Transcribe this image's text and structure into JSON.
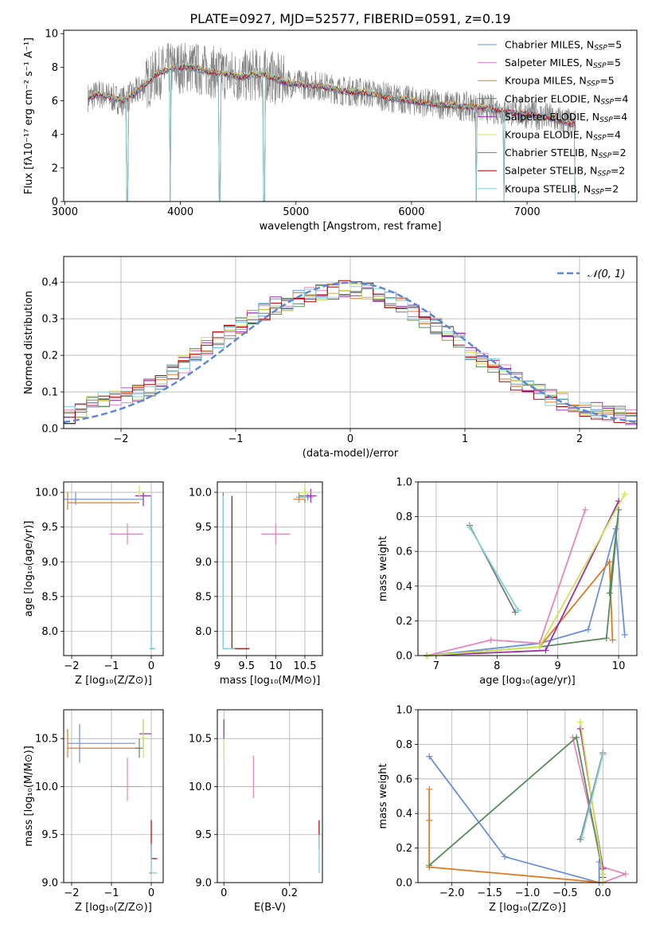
{
  "figure_title": "PLATE=0927, MJD=52577, FIBERID=0591, z=0.19",
  "series_colors": [
    "#6a8fd8",
    "#e786b9",
    "#e07b22",
    "#5a8a5e",
    "#9b2fae",
    "#cde554",
    "#7a7a7a",
    "#b00000",
    "#7fd3dc"
  ],
  "chart_data": [
    {
      "id": "spectrum",
      "type": "line",
      "title": "PLATE=0927, MJD=52577, FIBERID=0591, z=0.19",
      "xlabel": "wavelength [Angstrom, rest frame]",
      "ylabel": "Flux [fλ10⁻¹⁷ erg cm⁻² s⁻¹ A⁻¹]",
      "xlim": [
        2990,
        7950
      ],
      "ylim": [
        0,
        10.2
      ],
      "xticks": [
        3000,
        4000,
        5000,
        6000,
        7000
      ],
      "yticks": [
        0,
        2,
        4,
        6,
        8,
        10
      ],
      "grid": false,
      "legend_position": "upper-right",
      "legend": [
        {
          "label": "Chabrier MILES, N",
          "sub": "SSP",
          "tail": "=5"
        },
        {
          "label": "Salpeter MILES, N",
          "sub": "SSP",
          "tail": "=5"
        },
        {
          "label": "Kroupa MILES, N",
          "sub": "SSP",
          "tail": "=5"
        },
        {
          "label": "Chabrier ELODIE, N",
          "sub": "SSP",
          "tail": "=4"
        },
        {
          "label": "Salpeter ELODIE, N",
          "sub": "SSP",
          "tail": "=4"
        },
        {
          "label": "Kroupa ELODIE, N",
          "sub": "SSP",
          "tail": "=4"
        },
        {
          "label": "Chabrier STELIB, N",
          "sub": "SSP",
          "tail": "=2"
        },
        {
          "label": "Salpeter STELIB, N",
          "sub": "SSP",
          "tail": "=2"
        },
        {
          "label": "Kroupa STELIB, N",
          "sub": "SSP",
          "tail": "=2"
        }
      ],
      "continuum": {
        "x": [
          3200,
          3300,
          3400,
          3500,
          3600,
          3700,
          3800,
          3900,
          4000,
          4100,
          4200,
          4300,
          4400,
          4500,
          4600,
          4700,
          4800,
          4900,
          5000,
          5200,
          5400,
          5600,
          5800,
          6000,
          6200,
          6400,
          6600,
          6800,
          7000,
          7200,
          7400
        ],
        "y": [
          6.2,
          6.4,
          6.2,
          6.0,
          6.4,
          7.0,
          7.6,
          7.9,
          8.0,
          8.0,
          7.8,
          7.7,
          7.6,
          7.4,
          7.5,
          7.6,
          7.4,
          7.1,
          7.0,
          6.9,
          6.6,
          6.5,
          6.2,
          6.0,
          5.8,
          5.7,
          5.6,
          5.4,
          5.2,
          5.0,
          4.6
        ]
      },
      "absorption_dips": [
        {
          "x": 3540,
          "y": 0
        },
        {
          "x": 3910,
          "y": 0
        },
        {
          "x": 4340,
          "y": 0
        },
        {
          "x": 4725,
          "y": 0
        },
        {
          "x": 6560,
          "y": 0
        },
        {
          "x": 6800,
          "y": 0
        },
        {
          "x": 7420,
          "y": 0
        }
      ]
    },
    {
      "id": "residuals",
      "type": "histogram",
      "xlabel": "(data-model)/error",
      "ylabel": "Normed distribution",
      "xlim": [
        -2.5,
        2.5
      ],
      "ylim": [
        0,
        0.47
      ],
      "xticks": [
        -2,
        -1,
        0,
        1,
        2
      ],
      "yticks": [
        0.0,
        0.1,
        0.2,
        0.3,
        0.4
      ],
      "grid": true,
      "legend_position": "upper-right",
      "legend": [
        {
          "label": "𝒩(0, 1)"
        }
      ],
      "bin_width": 0.1,
      "histogram_envelope": {
        "x": [
          -2.5,
          -2.3,
          -2.1,
          -1.9,
          -1.7,
          -1.5,
          -1.3,
          -1.1,
          -0.9,
          -0.7,
          -0.5,
          -0.3,
          -0.1,
          0.1,
          0.3,
          0.5,
          0.7,
          0.9,
          1.1,
          1.3,
          1.5,
          1.7,
          1.9,
          2.1,
          2.3,
          2.5
        ],
        "y": [
          0.03,
          0.06,
          0.08,
          0.09,
          0.12,
          0.16,
          0.22,
          0.25,
          0.29,
          0.33,
          0.35,
          0.37,
          0.38,
          0.38,
          0.36,
          0.33,
          0.29,
          0.25,
          0.2,
          0.16,
          0.12,
          0.09,
          0.07,
          0.05,
          0.04,
          0.03
        ]
      },
      "series_note_free": true,
      "normal_curve": {
        "mean": 0,
        "sigma": 1
      }
    },
    {
      "id": "age_vs_Z",
      "type": "errorbar",
      "xlabel": "Z [log₁₀(Z/Z⊙)]",
      "ylabel": "age  [log₁₀(age/yr)]",
      "xlim": [
        -2.2,
        0.3
      ],
      "ylim": [
        7.65,
        10.15
      ],
      "xticks": [
        -2,
        -1,
        0
      ],
      "xticklabels": [
        "−2",
        "−1",
        "0"
      ],
      "yticks": [
        8.0,
        8.5,
        9.0,
        9.5,
        10.0
      ],
      "grid": true,
      "points": [
        {
          "series": 0,
          "x": -1.9,
          "y": 9.9,
          "xerr": [
            0.3,
            1.7
          ],
          "yerr": [
            0.08,
            0.1
          ]
        },
        {
          "series": 1,
          "x": -0.6,
          "y": 9.4,
          "xerr": [
            0.45,
            0.4
          ],
          "yerr": [
            0.15,
            0.15
          ]
        },
        {
          "series": 2,
          "x": -2.1,
          "y": 9.85,
          "xerr": [
            0.0,
            1.8
          ],
          "yerr": [
            0.1,
            0.15
          ]
        },
        {
          "series": 3,
          "x": -0.2,
          "y": 9.95,
          "xerr": [
            0.2,
            0.1
          ],
          "yerr": [
            0.05,
            0.05
          ]
        },
        {
          "series": 4,
          "x": -0.2,
          "y": 9.95,
          "xerr": [
            0.2,
            0.2
          ],
          "yerr": [
            0.15,
            0.05
          ]
        },
        {
          "series": 5,
          "x": -0.3,
          "y": 10.0,
          "xerr": [
            0.05,
            0.1
          ],
          "yerr": [
            0.1,
            0.1
          ]
        },
        {
          "series": 6,
          "x": 0.0,
          "y": 7.75,
          "xerr": [
            0.05,
            0.1
          ],
          "yerr": [
            0.0,
            2.2
          ]
        },
        {
          "series": 8,
          "x": 0.0,
          "y": 7.75,
          "xerr": [
            0.05,
            0.1
          ],
          "yerr": [
            0.0,
            2.2
          ]
        }
      ]
    },
    {
      "id": "age_vs_mass",
      "type": "errorbar",
      "xlabel": "mass [log₁₀(M/M⊙)]",
      "ylabel": "",
      "xlim": [
        9.0,
        10.8
      ],
      "ylim": [
        7.65,
        10.15
      ],
      "xticks": [
        9.0,
        9.5,
        10.0,
        10.5
      ],
      "yticks": [
        8.0,
        8.5,
        9.0,
        9.5,
        10.0
      ],
      "grid": true,
      "points": [
        {
          "series": 0,
          "x": 10.55,
          "y": 9.93,
          "xerr": [
            0.2,
            0.1
          ],
          "yerr": [
            0.05,
            0.05
          ]
        },
        {
          "series": 1,
          "x": 10.0,
          "y": 9.4,
          "xerr": [
            0.25,
            0.25
          ],
          "yerr": [
            0.15,
            0.15
          ]
        },
        {
          "series": 2,
          "x": 10.4,
          "y": 9.9,
          "xerr": [
            0.1,
            0.1
          ],
          "yerr": [
            0.05,
            0.1
          ]
        },
        {
          "series": 3,
          "x": 10.5,
          "y": 9.95,
          "xerr": [
            0.1,
            0.1
          ],
          "yerr": [
            0.1,
            0.1
          ]
        },
        {
          "series": 4,
          "x": 10.6,
          "y": 9.95,
          "xerr": [
            0.1,
            0.1
          ],
          "yerr": [
            0.1,
            0.1
          ]
        },
        {
          "series": 5,
          "x": 10.5,
          "y": 10.0,
          "xerr": [
            0.1,
            0.1
          ],
          "yerr": [
            0.1,
            0.1
          ]
        },
        {
          "series": 6,
          "x": 9.1,
          "y": 7.75,
          "xerr": [
            0.0,
            0.1
          ],
          "yerr": [
            0.0,
            2.25
          ]
        },
        {
          "series": 7,
          "x": 9.25,
          "y": 7.75,
          "xerr": [
            0.0,
            0.3
          ],
          "yerr": [
            0.0,
            2.2
          ]
        },
        {
          "series": 8,
          "x": 9.1,
          "y": 7.75,
          "xerr": [
            0.0,
            0.2
          ],
          "yerr": [
            0.0,
            2.2
          ]
        }
      ]
    },
    {
      "id": "weight_vs_age",
      "type": "line",
      "xlabel": "age  [log₁₀(age/yr)]",
      "ylabel": "mass weight",
      "xlim": [
        6.7,
        10.3
      ],
      "ylim": [
        0,
        1
      ],
      "xticks": [
        7,
        8,
        9,
        10
      ],
      "yticks": [
        0.0,
        0.2,
        0.4,
        0.6,
        0.8,
        1.0
      ],
      "grid": true,
      "series": [
        {
          "series": 0,
          "x": [
            6.85,
            8.7,
            9.5,
            9.95,
            10.1
          ],
          "y": [
            0.0,
            0.07,
            0.15,
            0.73,
            0.12
          ]
        },
        {
          "series": 1,
          "x": [
            6.85,
            7.9,
            8.7,
            9.45
          ],
          "y": [
            0.0,
            0.09,
            0.07,
            0.84
          ]
        },
        {
          "series": 2,
          "x": [
            6.85,
            8.7,
            9.85,
            9.9
          ],
          "y": [
            0.0,
            0.05,
            0.54,
            0.09
          ]
        },
        {
          "series": 3,
          "x": [
            6.85,
            8.7,
            9.8,
            10.0,
            9.85
          ],
          "y": [
            0.0,
            0.05,
            0.1,
            0.84,
            0.36
          ]
        },
        {
          "series": 4,
          "x": [
            6.85,
            8.8,
            10.0
          ],
          "y": [
            0.0,
            0.03,
            0.89
          ]
        },
        {
          "series": 5,
          "x": [
            6.85,
            8.7,
            10.1
          ],
          "y": [
            0.0,
            0.05,
            0.93
          ]
        },
        {
          "series": 6,
          "x": [
            7.55,
            8.3
          ],
          "y": [
            0.75,
            0.25
          ]
        },
        {
          "series": 8,
          "x": [
            7.55,
            8.35
          ],
          "y": [
            0.74,
            0.26
          ]
        }
      ]
    },
    {
      "id": "mass_vs_Z",
      "type": "errorbar",
      "xlabel": "Z [log₁₀(Z/Z⊙)]",
      "ylabel": "mass [log₁₀(M/M⊙)]",
      "xlim": [
        -2.2,
        0.3
      ],
      "ylim": [
        9.0,
        10.8
      ],
      "xticks": [
        -2,
        -1,
        0
      ],
      "xticklabels": [
        "−2",
        "−1",
        "0"
      ],
      "yticks": [
        9.0,
        9.5,
        10.0,
        10.5
      ],
      "grid": true,
      "points": [
        {
          "series": 0,
          "x": -1.8,
          "y": 10.45,
          "xerr": [
            0.3,
            1.4
          ],
          "yerr": [
            0.2,
            0.2
          ]
        },
        {
          "series": 1,
          "x": -0.6,
          "y": 10.0,
          "xerr": [
            0.4,
            0.4
          ],
          "yerr": [
            0.15,
            0.3
          ]
        },
        {
          "series": 2,
          "x": -2.1,
          "y": 10.4,
          "xerr": [
            0.0,
            1.8
          ],
          "yerr": [
            0.1,
            0.2
          ]
        },
        {
          "series": 3,
          "x": -0.3,
          "y": 10.4,
          "xerr": [
            0.1,
            0.1
          ],
          "yerr": [
            0.1,
            0.1
          ]
        },
        {
          "series": 4,
          "x": -0.2,
          "y": 10.55,
          "xerr": [
            0.1,
            0.2
          ],
          "yerr": [
            0.15,
            0.15
          ]
        },
        {
          "series": 5,
          "x": -0.2,
          "y": 10.5,
          "xerr": [
            0.1,
            0.1
          ],
          "yerr": [
            0.2,
            0.2
          ]
        },
        {
          "series": 6,
          "x": 0.0,
          "y": 9.1,
          "xerr": [
            0.05,
            0.1
          ],
          "yerr": [
            0.0,
            0.3
          ]
        },
        {
          "series": 7,
          "x": 0.0,
          "y": 9.25,
          "xerr": [
            0.0,
            0.15
          ],
          "yerr": [
            0.0,
            0.4
          ]
        },
        {
          "series": 8,
          "x": 0.0,
          "y": 9.1,
          "xerr": [
            0.0,
            0.15
          ],
          "yerr": [
            0.0,
            0.3
          ]
        }
      ]
    },
    {
      "id": "mass_vs_ebv",
      "type": "errorbar",
      "xlabel": "E(B-V)",
      "ylabel": "",
      "xlim": [
        -0.02,
        0.3
      ],
      "ylim": [
        9.0,
        10.8
      ],
      "xticks": [
        0.0,
        0.2
      ],
      "yticks": [
        9.0,
        9.5,
        10.0,
        10.5
      ],
      "grid": true,
      "points": [
        {
          "series": 1,
          "x": 0.09,
          "y": 10.1,
          "xerr": [
            0,
            0
          ],
          "yerr": [
            0.22,
            0.22
          ]
        },
        {
          "series": 5,
          "x": 0.0,
          "y": 10.5,
          "xerr": [
            0,
            0
          ],
          "yerr": [
            0.2,
            0.2
          ]
        },
        {
          "series": 4,
          "x": 0.0,
          "y": 10.6,
          "xerr": [
            0,
            0
          ],
          "yerr": [
            0.1,
            0.1
          ]
        },
        {
          "series": 7,
          "x": 0.29,
          "y": 9.5,
          "xerr": [
            0,
            0
          ],
          "yerr": [
            0.15,
            0.15
          ]
        },
        {
          "series": 8,
          "x": 0.29,
          "y": 9.3,
          "xerr": [
            0,
            0
          ],
          "yerr": [
            0.2,
            0.2
          ]
        }
      ]
    },
    {
      "id": "weight_vs_Z",
      "type": "line",
      "xlabel": "Z [log₁₀(Z/Z⊙)]",
      "ylabel": "mass weight",
      "xlim": [
        -2.45,
        0.45
      ],
      "ylim": [
        0,
        1
      ],
      "xticks": [
        -2.0,
        -1.5,
        -1.0,
        -0.5,
        0.0
      ],
      "xticklabels": [
        "−2.0",
        "−1.5",
        "−1.0",
        "−0.5",
        "0.0"
      ],
      "yticks": [
        0.0,
        0.2,
        0.4,
        0.6,
        0.8,
        1.0
      ],
      "grid": true,
      "series": [
        {
          "series": 0,
          "x": [
            -2.3,
            -1.3,
            -0.05,
            -0.05
          ],
          "y": [
            0.73,
            0.15,
            0.0,
            0.12
          ]
        },
        {
          "series": 1,
          "x": [
            -0.4,
            0.0,
            0.3,
            0.0
          ],
          "y": [
            0.84,
            0.09,
            0.05,
            0.0
          ]
        },
        {
          "series": 2,
          "x": [
            -2.3,
            -2.3,
            -2.3,
            0.0
          ],
          "y": [
            0.54,
            0.36,
            0.09,
            0.0
          ]
        },
        {
          "series": 3,
          "x": [
            -2.3,
            -0.35,
            0.0,
            0.0
          ],
          "y": [
            0.1,
            0.84,
            0.05,
            0.0
          ]
        },
        {
          "series": 4,
          "x": [
            -0.3,
            0.0,
            0.0
          ],
          "y": [
            0.89,
            0.08,
            0.03
          ]
        },
        {
          "series": 5,
          "x": [
            -0.3,
            0.0,
            0.0
          ],
          "y": [
            0.93,
            0.05,
            0.0
          ]
        },
        {
          "series": 6,
          "x": [
            -0.3,
            0.0
          ],
          "y": [
            0.25,
            0.75
          ]
        },
        {
          "series": 8,
          "x": [
            -0.28,
            0.0
          ],
          "y": [
            0.26,
            0.74
          ]
        }
      ]
    }
  ]
}
